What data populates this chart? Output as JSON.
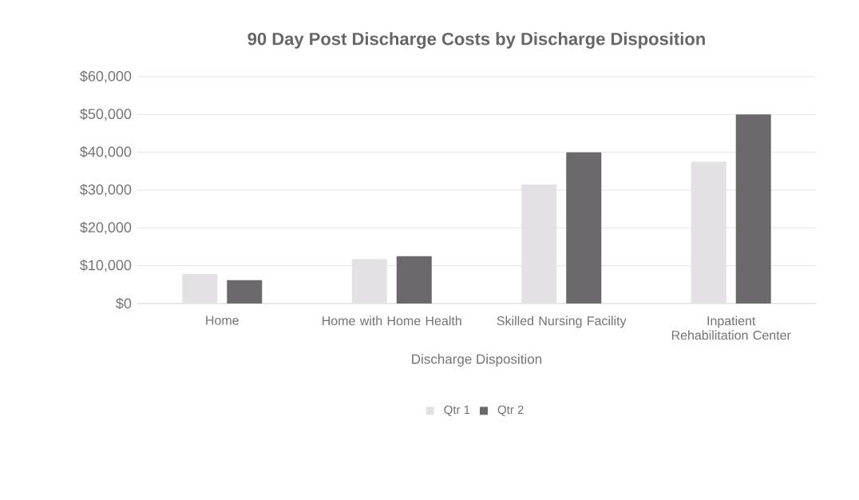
{
  "chart_data": {
    "type": "bar",
    "title": "90 Day Post Discharge Costs by Discharge Disposition",
    "xlabel": "Discharge Disposition",
    "categories": [
      "Home",
      "Home with Home Health",
      "Skilled Nursing Facility",
      "Inpatient Rehabilitation Center"
    ],
    "series": [
      {
        "name": "Qtr 1",
        "color": "#e3e1e3",
        "values": [
          7800,
          11800,
          31500,
          37500
        ]
      },
      {
        "name": "Qtr 2",
        "color": "#6b686b",
        "values": [
          6200,
          12500,
          40000,
          50000
        ]
      }
    ],
    "ylim": [
      0,
      60000
    ],
    "yticks": [
      {
        "value": 0,
        "label": "$0"
      },
      {
        "value": 10000,
        "label": "$10,000"
      },
      {
        "value": 20000,
        "label": "$20,000"
      },
      {
        "value": 30000,
        "label": "$30,000"
      },
      {
        "value": 40000,
        "label": "$40,000"
      },
      {
        "value": 50000,
        "label": "$50,000"
      },
      {
        "value": 60000,
        "label": "$60,000"
      }
    ],
    "grid": "y",
    "legend": "bottom"
  }
}
